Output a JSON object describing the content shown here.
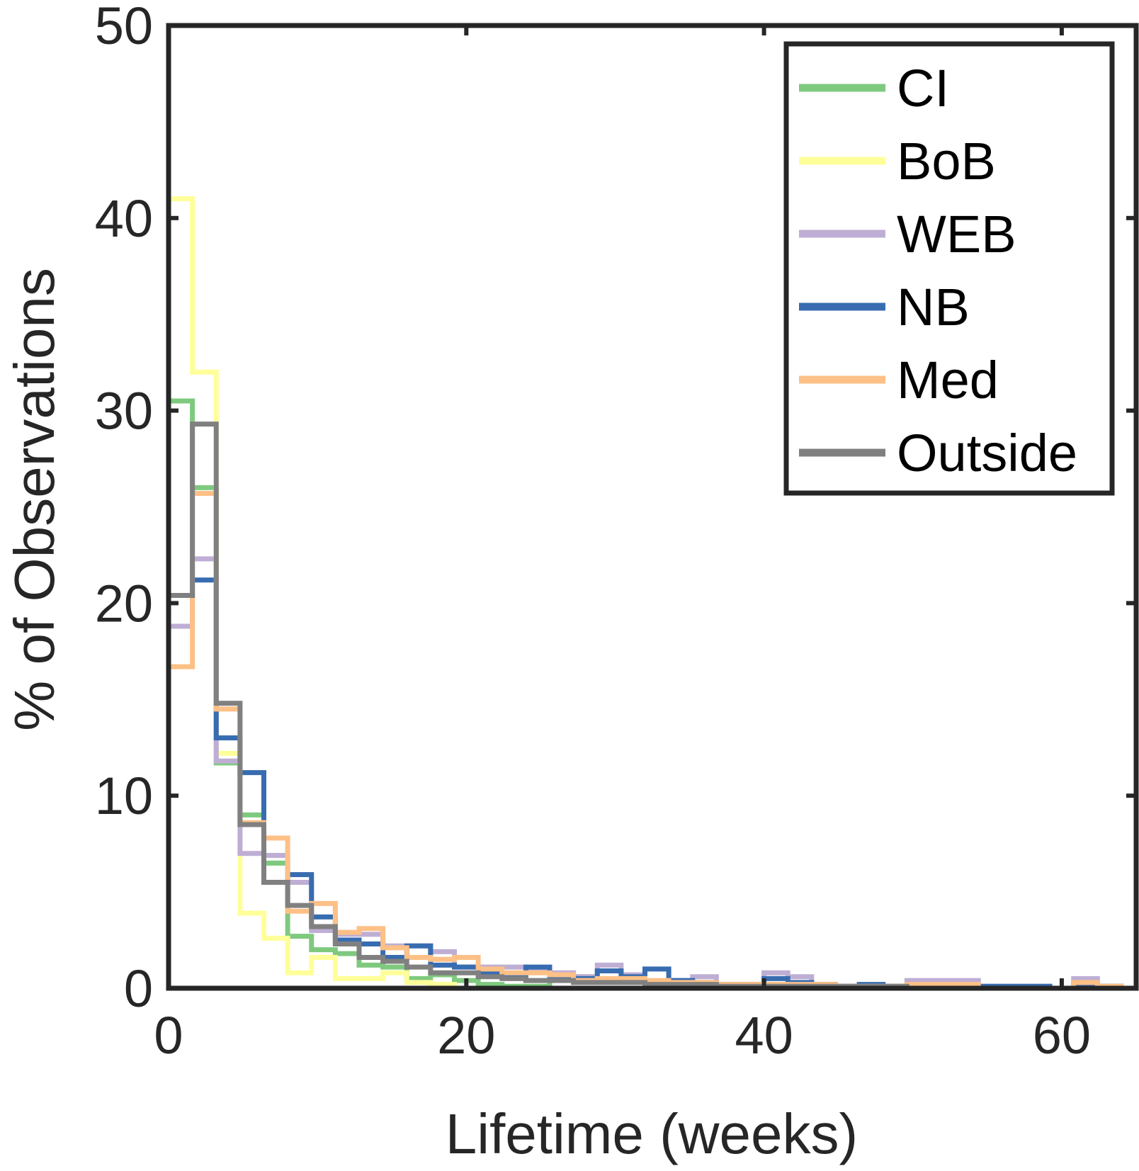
{
  "chart_data": {
    "type": "line",
    "subtype": "step-histogram",
    "xlabel": "Lifetime (weeks)",
    "ylabel": "% of Observations",
    "xlim": [
      0,
      65
    ],
    "ylim": [
      0,
      50
    ],
    "xticks": [
      0,
      20,
      40,
      60
    ],
    "yticks": [
      0,
      10,
      20,
      30,
      40,
      50
    ],
    "grid": false,
    "legend_position": "top-right",
    "bin_edges": [
      0,
      1.6,
      3.2,
      4.8,
      6.4,
      8,
      9.6,
      11.2,
      12.8,
      14.4,
      16,
      17.6,
      19.2,
      20.8,
      22.4,
      24,
      25.6,
      27.2,
      28.8,
      30.4,
      32,
      33.6,
      35.2,
      36.8,
      38.4,
      40,
      41.6,
      43.2,
      44.8,
      46.4,
      48,
      49.6,
      51.2,
      52.8,
      54.4,
      56,
      57.6,
      59.2,
      60.8,
      62.4,
      64
    ],
    "series": [
      {
        "name": "CI",
        "color": "#7fc97f",
        "values": [
          30.5,
          26.0,
          11.7,
          9.0,
          6.5,
          2.7,
          2.0,
          1.8,
          1.2,
          1.1,
          0.5,
          0.7,
          0.4,
          0.2,
          0.1,
          0.1,
          0.5,
          0.6,
          0.4,
          0.5,
          0.3,
          0.2,
          0.2,
          0.1,
          0.1,
          0.2,
          0.2,
          0.2,
          0.1,
          0.1,
          0.1,
          0.1,
          0.1,
          0.1,
          0,
          0,
          0,
          0,
          0,
          0
        ]
      },
      {
        "name": "BoB",
        "color": "#ffff99",
        "values": [
          41.0,
          32.0,
          12.2,
          3.9,
          2.6,
          0.8,
          1.6,
          0.5,
          0.5,
          0.8,
          0.3,
          0.2,
          0,
          0,
          0,
          0,
          0,
          0,
          0,
          0,
          0,
          0,
          0,
          0,
          0,
          0,
          0,
          0,
          0,
          0,
          0,
          0,
          0,
          0,
          0,
          0,
          0,
          0,
          0,
          0
        ]
      },
      {
        "name": "WEB",
        "color": "#beaed4",
        "values": [
          18.8,
          22.3,
          11.8,
          7.0,
          6.9,
          5.5,
          3.0,
          2.8,
          2.8,
          2.2,
          2.2,
          1.9,
          1.1,
          1.1,
          1.1,
          1.0,
          0.8,
          0.6,
          1.2,
          0.7,
          0.3,
          0.4,
          0.6,
          0.2,
          0.2,
          0.8,
          0.6,
          0.2,
          0.1,
          0.1,
          0.1,
          0.4,
          0.4,
          0.4,
          0.1,
          0.1,
          0.1,
          0,
          0.5,
          0.1
        ]
      },
      {
        "name": "NB",
        "color": "#386cb0",
        "values": [
          20.4,
          21.2,
          13.0,
          11.2,
          5.5,
          5.9,
          3.7,
          2.5,
          2.3,
          1.6,
          2.2,
          1.2,
          1.1,
          0.8,
          0.7,
          1.1,
          0.6,
          0.5,
          0.9,
          0.6,
          1.0,
          0.4,
          0.3,
          0.2,
          0.2,
          0.5,
          0.3,
          0.2,
          0.1,
          0.2,
          0.1,
          0.1,
          0.1,
          0.1,
          0.1,
          0.1,
          0.1,
          0,
          0.2,
          0.1
        ]
      },
      {
        "name": "Med",
        "color": "#fdc086",
        "values": [
          16.7,
          25.7,
          14.5,
          8.6,
          7.8,
          4.0,
          4.4,
          2.9,
          3.1,
          2.1,
          1.6,
          1.5,
          1.6,
          1.0,
          0.8,
          0.8,
          0.7,
          0.4,
          0.5,
          0.5,
          0.4,
          0.3,
          0.3,
          0.2,
          0.2,
          0.2,
          0.2,
          0.2,
          0.1,
          0.1,
          0.1,
          0.2,
          0.2,
          0.2,
          0,
          0,
          0,
          0,
          0.3,
          0.1
        ]
      },
      {
        "name": "Outside",
        "color": "#808080",
        "values": [
          20.4,
          29.3,
          14.8,
          8.5,
          5.5,
          4.3,
          3.2,
          2.3,
          1.6,
          1.4,
          1.1,
          0.8,
          0.8,
          0.6,
          0.5,
          0.4,
          0.4,
          0.3,
          0.3,
          0.3,
          0.2,
          0.2,
          0.2,
          0.1,
          0.1,
          0.1,
          0.1,
          0.1,
          0.1,
          0.1,
          0.1,
          0,
          0,
          0,
          0,
          0,
          0,
          0,
          0,
          0
        ]
      }
    ]
  }
}
